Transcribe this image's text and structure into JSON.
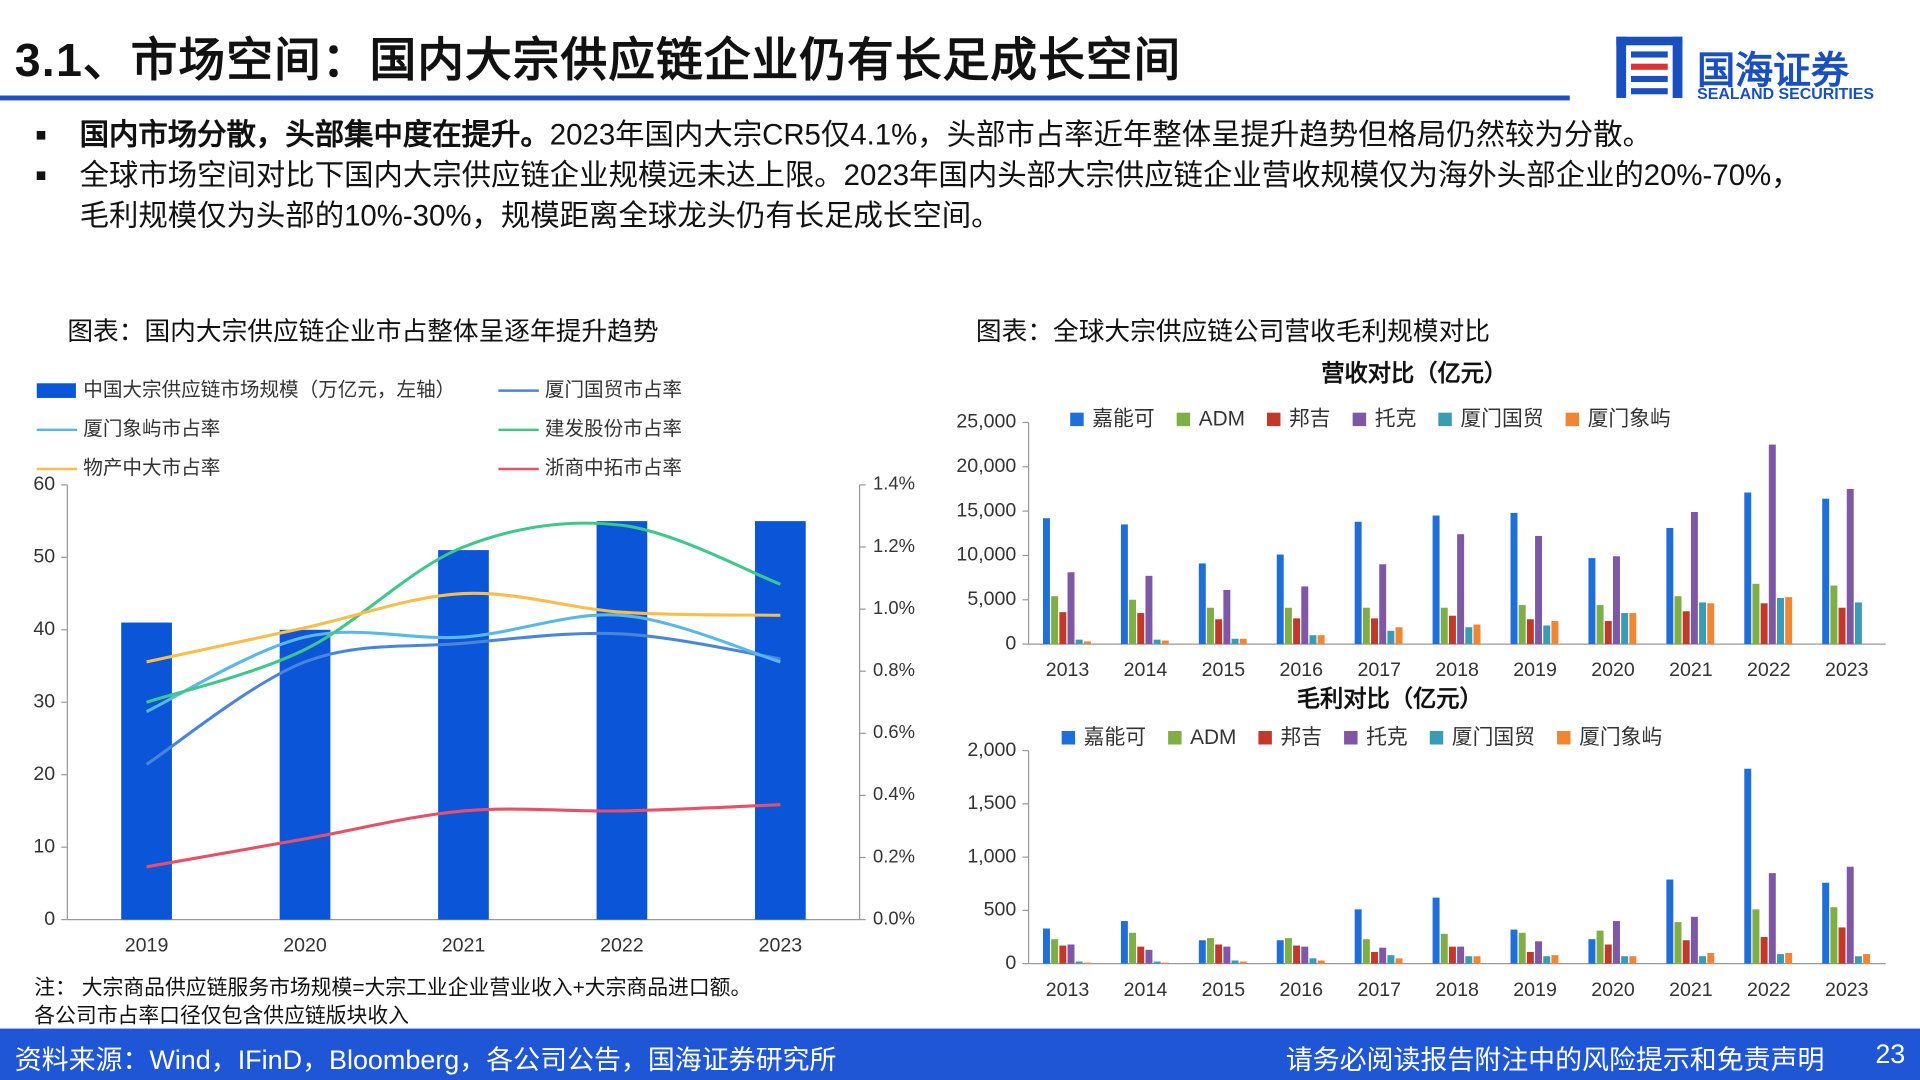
{
  "title": "3.1、市场空间：国内大宗供应链企业仍有长足成长空间",
  "logo": {
    "name": "国海证券",
    "subtitle": "SEALAND SECURITIES"
  },
  "bullets": [
    {
      "bold": "国内市场分散，头部集中度在提升。",
      "text": "2023年国内大宗CR5仅4.1%，头部市占率近年整体呈提升趋势但格局仍然较为分散。"
    },
    {
      "bold": "",
      "text": "全球市场空间对比下国内大宗供应链企业规模远未达上限。2023年国内头部大宗供应链企业营收规模仅为海外头部企业的20%-70%，毛利规模仅为头部的10%-30%，规模距离全球龙头仍有长足成长空间。"
    }
  ],
  "right_panel_title": "图表：全球大宗供应链公司营收毛利规模对比",
  "chart_data": [
    {
      "type": "combo",
      "title": "图表：国内大宗供应链企业市占整体呈逐年提升趋势",
      "categories": [
        "2019",
        "2020",
        "2021",
        "2022",
        "2023"
      ],
      "ylim": [
        0,
        60
      ],
      "yticks": [
        0,
        10,
        20,
        30,
        40,
        50,
        60
      ],
      "y2lim": [
        0,
        1.4
      ],
      "y2ticks": [
        {
          "value": 0,
          "label": "0.0%"
        },
        {
          "value": 0.2,
          "label": "0.2%"
        },
        {
          "value": 0.4,
          "label": "0.4%"
        },
        {
          "value": 0.6,
          "label": "0.6%"
        },
        {
          "value": 0.8,
          "label": "0.8%"
        },
        {
          "value": 1.0,
          "label": "1.0%"
        },
        {
          "value": 1.2,
          "label": "1.2%"
        },
        {
          "value": 1.4,
          "label": "1.4%"
        }
      ],
      "series": [
        {
          "name": "中国大宗供应链市场规模（万亿元，左轴）",
          "type": "bar",
          "color": "#0b55d9",
          "values": [
            41,
            40,
            51,
            55,
            55
          ]
        },
        {
          "name": "厦门国贸市占率",
          "type": "line",
          "axis": "y2",
          "color": "#4a86d8",
          "values": [
            0.5,
            0.83,
            0.89,
            0.92,
            0.84
          ]
        },
        {
          "name": "厦门象屿市占率",
          "type": "line",
          "axis": "y2",
          "color": "#58b8e8",
          "values": [
            0.67,
            0.91,
            0.91,
            0.98,
            0.83
          ]
        },
        {
          "name": "建发股份市占率",
          "type": "line",
          "axis": "y2",
          "color": "#3ec78c",
          "values": [
            0.7,
            0.87,
            1.2,
            1.27,
            1.08
          ]
        },
        {
          "name": "物产中大市占率",
          "type": "line",
          "axis": "y2",
          "color": "#f8bd4a",
          "values": [
            0.83,
            0.94,
            1.05,
            0.99,
            0.98
          ]
        },
        {
          "name": "浙商中拓市占率",
          "type": "line",
          "axis": "y2",
          "color": "#e8506a",
          "values": [
            0.17,
            0.26,
            0.35,
            0.35,
            0.37
          ]
        }
      ]
    },
    {
      "type": "bar",
      "title": "营收对比（亿元）",
      "categories": [
        "2013",
        "2014",
        "2015",
        "2016",
        "2017",
        "2018",
        "2019",
        "2020",
        "2021",
        "2022",
        "2023"
      ],
      "ylim": [
        0,
        25000
      ],
      "yticks": [
        0,
        {
          "value": 5000,
          "label": "5,000"
        },
        {
          "value": 10000,
          "label": "10,000"
        },
        {
          "value": 15000,
          "label": "15,000"
        },
        {
          "value": 20000,
          "label": "20,000"
        },
        {
          "value": 25000,
          "label": "25,000"
        }
      ],
      "series": [
        {
          "name": "嘉能可",
          "color": "#1f6fd6",
          "values": [
            14200,
            13500,
            9100,
            10100,
            13800,
            14500,
            14800,
            9700,
            13100,
            17100,
            16400
          ]
        },
        {
          "name": "ADM",
          "color": "#7fad46",
          "values": [
            5400,
            5000,
            4100,
            4100,
            4100,
            4100,
            4400,
            4400,
            5400,
            6800,
            6600
          ]
        },
        {
          "name": "邦吉",
          "color": "#c0392b",
          "values": [
            3600,
            3500,
            2800,
            2900,
            2900,
            3200,
            2800,
            2600,
            3700,
            4600,
            4100
          ]
        },
        {
          "name": "托克",
          "color": "#7e57a5",
          "values": [
            8100,
            7700,
            6100,
            6500,
            9000,
            12400,
            12200,
            9900,
            14900,
            22500,
            17500
          ]
        },
        {
          "name": "厦门国贸",
          "color": "#3a9cb4",
          "values": [
            500,
            500,
            600,
            1000,
            1500,
            1900,
            2100,
            3500,
            4700,
            5200,
            4700
          ]
        },
        {
          "name": "厦门象屿",
          "color": "#ee8633",
          "values": [
            300,
            400,
            600,
            1000,
            1900,
            2200,
            2600,
            3500,
            4600,
            5300,
            null
          ]
        }
      ]
    },
    {
      "type": "bar",
      "title": "毛利对比（亿元）",
      "categories": [
        "2013",
        "2014",
        "2015",
        "2016",
        "2017",
        "2018",
        "2019",
        "2020",
        "2021",
        "2022",
        "2023"
      ],
      "ylim": [
        0,
        2000
      ],
      "yticks": [
        0,
        500,
        {
          "value": 1000,
          "label": "1,000"
        },
        {
          "value": 1500,
          "label": "1,500"
        },
        {
          "value": 2000,
          "label": "2,000"
        }
      ],
      "series": [
        {
          "name": "嘉能可",
          "color": "#1f6fd6",
          "values": [
            330,
            400,
            220,
            220,
            510,
            620,
            320,
            230,
            790,
            1830,
            760
          ]
        },
        {
          "name": "ADM",
          "color": "#7fad46",
          "values": [
            230,
            290,
            240,
            240,
            230,
            280,
            290,
            310,
            390,
            510,
            530
          ]
        },
        {
          "name": "邦吉",
          "color": "#c0392b",
          "values": [
            170,
            160,
            180,
            170,
            110,
            160,
            110,
            180,
            220,
            250,
            340
          ]
        },
        {
          "name": "托克",
          "color": "#7e57a5",
          "values": [
            180,
            130,
            160,
            160,
            150,
            160,
            210,
            400,
            440,
            850,
            910
          ]
        },
        {
          "name": "厦门国贸",
          "color": "#3a9cb4",
          "values": [
            20,
            20,
            30,
            50,
            80,
            70,
            70,
            70,
            70,
            90,
            70
          ]
        },
        {
          "name": "厦门象屿",
          "color": "#ee8633",
          "values": [
            10,
            10,
            20,
            30,
            50,
            70,
            80,
            70,
            100,
            100,
            90
          ]
        }
      ]
    }
  ],
  "notes": [
    "注：  大宗商品供应链服务市场规模=大宗工业企业营业收入+大宗商品进口额。",
    "各公司市占率口径仅包含供应链版块收入"
  ],
  "footer": {
    "source": "资料来源：Wind，IFinD，Bloomberg，各公司公告，国海证券研究所",
    "disclaimer": "请务必阅读报告附注中的风险提示和免责声明",
    "page": 23
  }
}
